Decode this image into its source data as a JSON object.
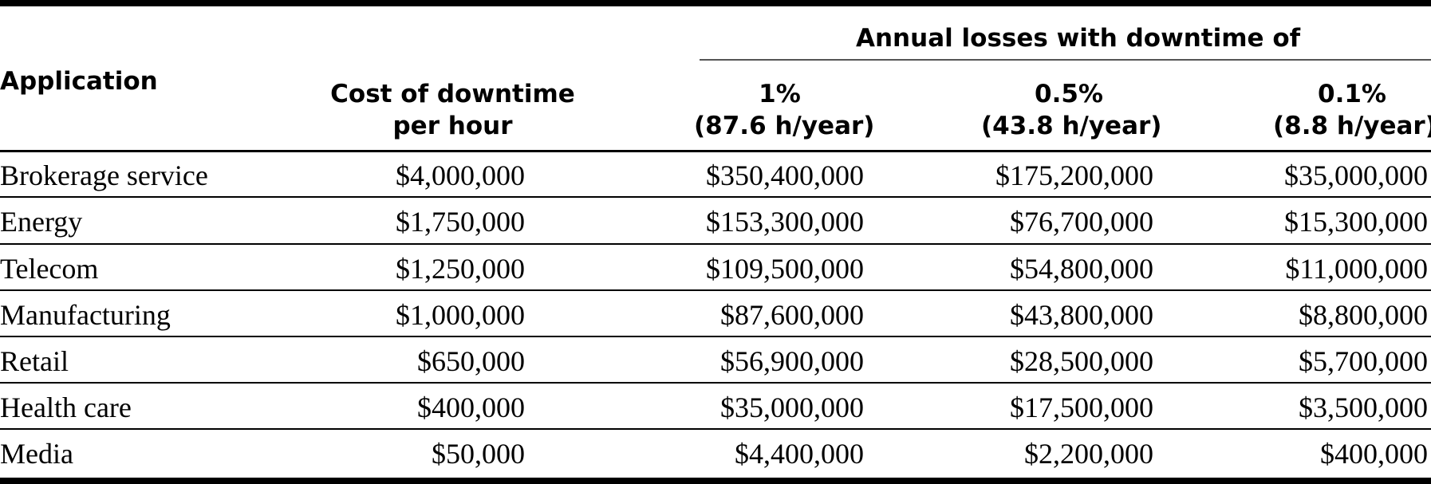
{
  "table": {
    "header": {
      "application": "Application",
      "cost_line1": "Cost of downtime",
      "cost_line2": "per hour",
      "span_label": "Annual losses with downtime of",
      "col1_line1": "1%",
      "col1_line2": "(87.6 h/year)",
      "col2_line1": "0.5%",
      "col2_line2": "(43.8 h/year)",
      "col3_line1": "0.1%",
      "col3_line2": "(8.8 h/year)"
    },
    "rows": [
      {
        "application": "Brokerage service",
        "cost": "$4,000,000",
        "loss_1": "$350,400,000",
        "loss_05": "$175,200,000",
        "loss_01": "$35,000,000"
      },
      {
        "application": "Energy",
        "cost": "$1,750,000",
        "loss_1": "$153,300,000",
        "loss_05": "$76,700,000",
        "loss_01": "$15,300,000"
      },
      {
        "application": "Telecom",
        "cost": "$1,250,000",
        "loss_1": "$109,500,000",
        "loss_05": "$54,800,000",
        "loss_01": "$11,000,000"
      },
      {
        "application": "Manufacturing",
        "cost": "$1,000,000",
        "loss_1": "$87,600,000",
        "loss_05": "$43,800,000",
        "loss_01": "$8,800,000"
      },
      {
        "application": "Retail",
        "cost": "$650,000",
        "loss_1": "$56,900,000",
        "loss_05": "$28,500,000",
        "loss_01": "$5,700,000"
      },
      {
        "application": "Health care",
        "cost": "$400,000",
        "loss_1": "$35,000,000",
        "loss_05": "$17,500,000",
        "loss_01": "$3,500,000"
      },
      {
        "application": "Media",
        "cost": "$50,000",
        "loss_1": "$4,400,000",
        "loss_05": "$2,200,000",
        "loss_01": "$400,000"
      }
    ]
  }
}
